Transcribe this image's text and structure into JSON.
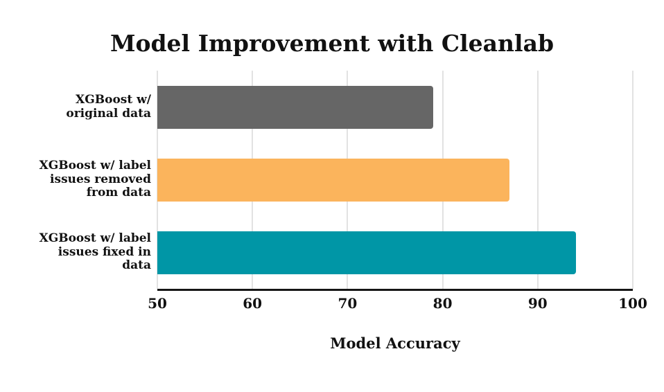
{
  "chart_data": {
    "type": "bar",
    "orientation": "horizontal",
    "title": "Model Improvement with Cleanlab",
    "xlabel": "Model Accuracy",
    "categories": [
      "XGBoost w/\noriginal data",
      "XGBoost w/ label\nissues removed\nfrom data",
      "XGBoost w/ label\nissues fixed in\ndata"
    ],
    "values": [
      79,
      87,
      94
    ],
    "colors": [
      "#666666",
      "#FBB45C",
      "#0096A6"
    ],
    "xlim": [
      50,
      100
    ],
    "xticks": [
      50,
      60,
      70,
      80,
      90,
      100
    ],
    "grid": true,
    "gridline_color": "#e2e2e2",
    "axis_line_color": "#161616",
    "legend": false,
    "background": "#ffffff"
  }
}
